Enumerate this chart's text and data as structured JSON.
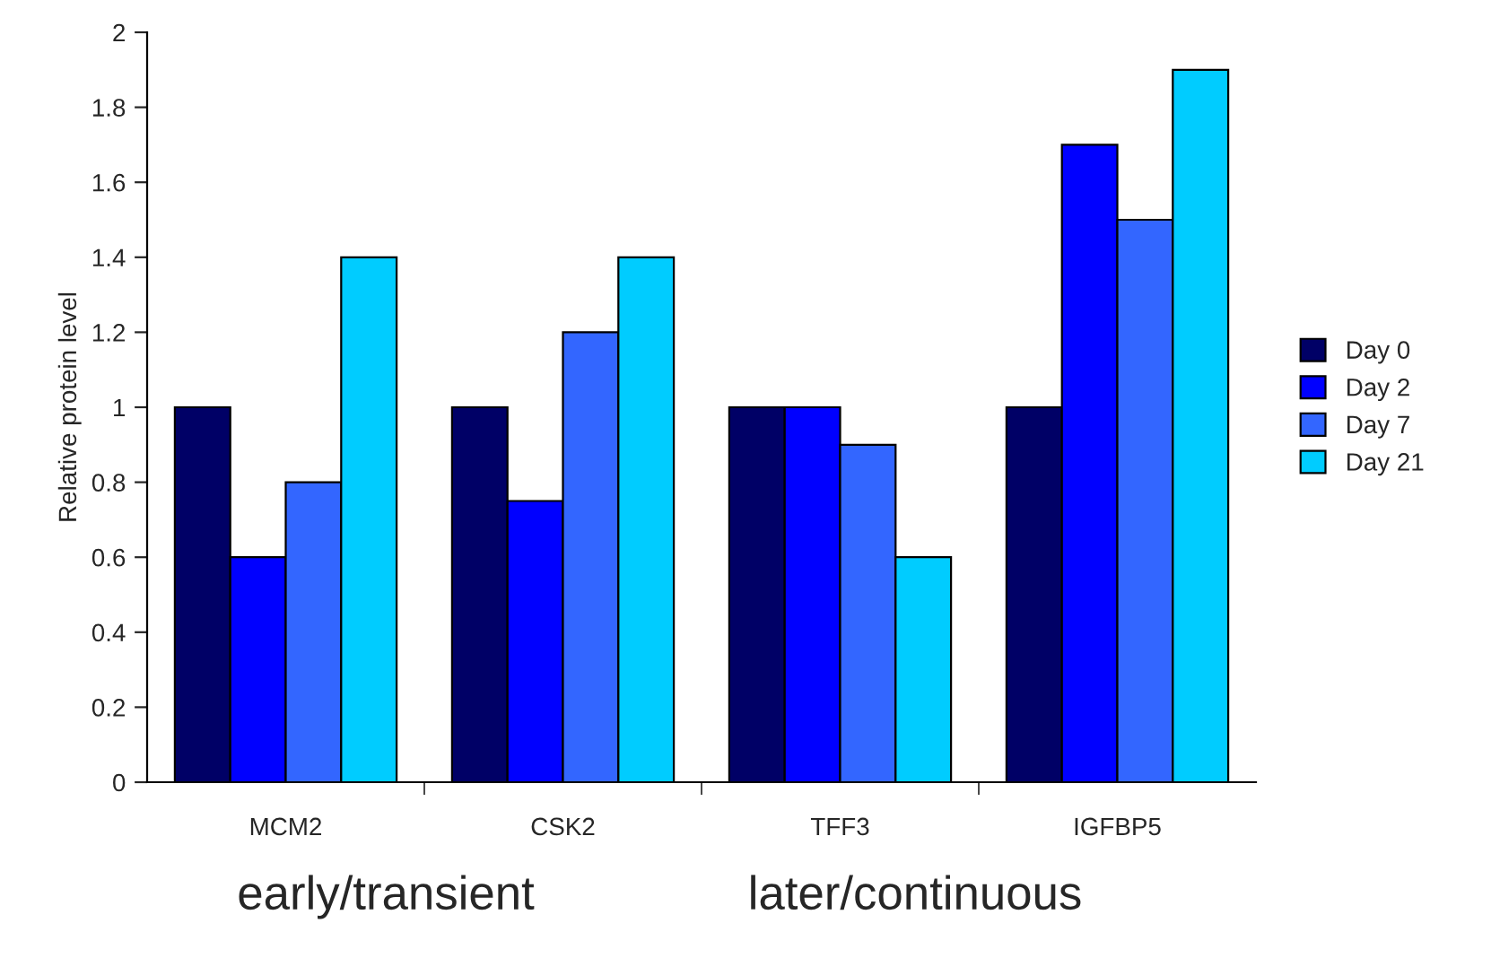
{
  "chart_data": {
    "type": "bar",
    "ylabel": "Relative protein level",
    "categories": [
      "MCM2",
      "CSK2",
      "TFF3",
      "IGFBP5"
    ],
    "series": [
      {
        "name": "Day 0",
        "color": "#000066",
        "values": [
          1,
          1,
          1,
          1
        ]
      },
      {
        "name": "Day 2",
        "color": "#0000ff",
        "values": [
          0.6,
          0.75,
          1,
          1.7
        ]
      },
      {
        "name": "Day 7",
        "color": "#3366ff",
        "values": [
          0.8,
          1.2,
          0.9,
          1.5
        ]
      },
      {
        "name": "Day 21",
        "color": "#00ccff",
        "values": [
          1.4,
          1.4,
          0.6,
          1.9
        ]
      }
    ],
    "ylim": [
      0,
      2
    ],
    "yticks": [
      0,
      0.2,
      0.4,
      0.6,
      0.8,
      1,
      1.2,
      1.4,
      1.6,
      1.8,
      2
    ],
    "grid": false,
    "legend": "right",
    "annotations": [
      "early/transient",
      "later/continuous"
    ]
  }
}
